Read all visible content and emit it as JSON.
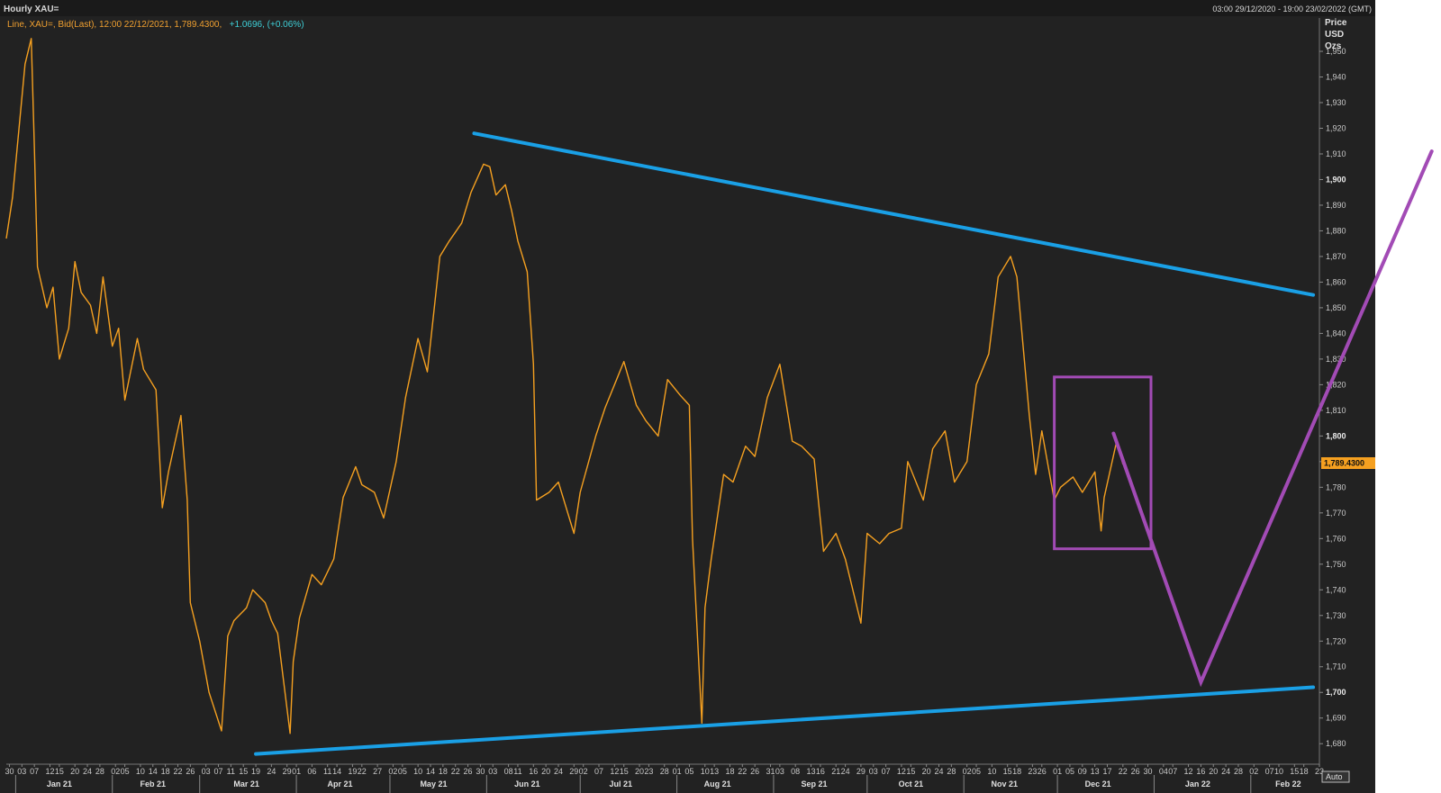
{
  "header": {
    "title": "Hourly XAU=",
    "date_range": "03:00 29/12/2020 - 19:00 23/02/2022 (GMT)",
    "legend_main": "Line, XAU=, Bid(Last), 12:00 22/12/2021, 1,789.4300,",
    "legend_change": "+1.0696, (+0.06%)"
  },
  "axis": {
    "y_title": [
      "Price",
      "USD",
      "Ozs"
    ],
    "last_value_label": "1,789.4300",
    "auto_button": "Auto"
  },
  "colors": {
    "background": "#222222",
    "price_line": "#f5a020",
    "trendline": "#1aa0e6",
    "annotation": "#a24bb5",
    "last_label_bg": "#f5a020"
  },
  "chart_data": {
    "type": "line",
    "series": [
      {
        "x": [
          "2020-12-29",
          "2020-12-31",
          "2021-01-04",
          "2021-01-06",
          "2021-01-07",
          "2021-01-08",
          "2021-01-11",
          "2021-01-13",
          "2021-01-15",
          "2021-01-18",
          "2021-01-20",
          "2021-01-22",
          "2021-01-25",
          "2021-01-27",
          "2021-01-29",
          "2021-02-01",
          "2021-02-03",
          "2021-02-05",
          "2021-02-09",
          "2021-02-11",
          "2021-02-15",
          "2021-02-17",
          "2021-02-19",
          "2021-02-23",
          "2021-02-25",
          "2021-02-26",
          "2021-03-01",
          "2021-03-04",
          "2021-03-08",
          "2021-03-10",
          "2021-03-12",
          "2021-03-16",
          "2021-03-18",
          "2021-03-22",
          "2021-03-24",
          "2021-03-26",
          "2021-03-30",
          "2021-03-31",
          "2021-04-02",
          "2021-04-06",
          "2021-04-09",
          "2021-04-13",
          "2021-04-16",
          "2021-04-20",
          "2021-04-22",
          "2021-04-26",
          "2021-04-29",
          "2021-05-03",
          "2021-05-06",
          "2021-05-10",
          "2021-05-13",
          "2021-05-17",
          "2021-05-20",
          "2021-05-24",
          "2021-05-27",
          "2021-05-31",
          "2021-06-02",
          "2021-06-04",
          "2021-06-07",
          "2021-06-09",
          "2021-06-11",
          "2021-06-14",
          "2021-06-16",
          "2021-06-17",
          "2021-06-21",
          "2021-06-24",
          "2021-06-29",
          "2021-07-01",
          "2021-07-06",
          "2021-07-09",
          "2021-07-13",
          "2021-07-15",
          "2021-07-19",
          "2021-07-22",
          "2021-07-26",
          "2021-07-29",
          "2021-08-02",
          "2021-08-05",
          "2021-08-06",
          "2021-08-09",
          "2021-08-10",
          "2021-08-12",
          "2021-08-16",
          "2021-08-19",
          "2021-08-23",
          "2021-08-26",
          "2021-08-30",
          "2021-09-03",
          "2021-09-07",
          "2021-09-10",
          "2021-09-14",
          "2021-09-17",
          "2021-09-21",
          "2021-09-24",
          "2021-09-29",
          "2021-10-01",
          "2021-10-05",
          "2021-10-08",
          "2021-10-12",
          "2021-10-14",
          "2021-10-19",
          "2021-10-22",
          "2021-10-26",
          "2021-10-29",
          "2021-11-02",
          "2021-11-05",
          "2021-11-09",
          "2021-11-12",
          "2021-11-16",
          "2021-11-18",
          "2021-11-22",
          "2021-11-24",
          "2021-11-26",
          "2021-11-30",
          "2021-12-02",
          "2021-12-06",
          "2021-12-09",
          "2021-12-13",
          "2021-12-15",
          "2021-12-16",
          "2021-12-20",
          "2021-12-22"
        ],
        "y": [
          1877,
          1893,
          1945,
          1955,
          1912,
          1866,
          1850,
          1858,
          1830,
          1842,
          1868,
          1856,
          1851,
          1840,
          1862,
          1835,
          1842,
          1814,
          1838,
          1826,
          1818,
          1772,
          1786,
          1808,
          1775,
          1735,
          1720,
          1700,
          1685,
          1722,
          1728,
          1733,
          1740,
          1735,
          1728,
          1723,
          1684,
          1712,
          1729,
          1746,
          1742,
          1752,
          1776,
          1788,
          1781,
          1778,
          1768,
          1790,
          1815,
          1838,
          1825,
          1870,
          1876,
          1883,
          1895,
          1906,
          1905,
          1894,
          1898,
          1888,
          1876,
          1864,
          1828,
          1775,
          1778,
          1782,
          1762,
          1778,
          1800,
          1811,
          1823,
          1829,
          1812,
          1806,
          1800,
          1822,
          1816,
          1812,
          1760,
          1688,
          1733,
          1752,
          1785,
          1782,
          1796,
          1792,
          1815,
          1828,
          1798,
          1796,
          1791,
          1755,
          1762,
          1752,
          1727,
          1762,
          1758,
          1762,
          1764,
          1790,
          1775,
          1795,
          1802,
          1782,
          1790,
          1820,
          1832,
          1862,
          1870,
          1862,
          1808,
          1785,
          1802,
          1775,
          1780,
          1784,
          1778,
          1786,
          1763,
          1776,
          1798,
          1789
        ]
      }
    ],
    "xlim": [
      "2020-12-29",
      "2022-02-23"
    ],
    "ylim": [
      1672,
      1963
    ],
    "y_ticks": [
      1680,
      1690,
      1700,
      1710,
      1720,
      1730,
      1740,
      1750,
      1760,
      1770,
      1780,
      1790,
      1800,
      1810,
      1820,
      1830,
      1840,
      1850,
      1860,
      1870,
      1880,
      1890,
      1900,
      1910,
      1920,
      1930,
      1940,
      1950
    ],
    "y_tick_labels": [
      "1,680",
      "1,690",
      "1,700",
      "1,710",
      "1,720",
      "1,730",
      "1,740",
      "1,750",
      "1,760",
      "1,770",
      "1,780",
      "1,790",
      "1,800",
      "1,810",
      "1,820",
      "1,830",
      "1,840",
      "1,850",
      "1,860",
      "1,870",
      "1,880",
      "1,890",
      "1,900",
      "1,910",
      "1,920",
      "1,930",
      "1,940",
      "1,950"
    ],
    "y_major_ticks": [
      1700,
      1800,
      1900
    ],
    "x_day_ticks": [
      {
        "date": "2020-12-30",
        "label": "30"
      },
      {
        "date": "2021-01-03",
        "label": "03"
      },
      {
        "date": "2021-01-07",
        "label": "07"
      },
      {
        "date": "2021-01-12",
        "label": "12"
      },
      {
        "date": "2021-01-15",
        "label": "15"
      },
      {
        "date": "2021-01-20",
        "label": "20"
      },
      {
        "date": "2021-01-24",
        "label": "24"
      },
      {
        "date": "2021-01-28",
        "label": "28"
      },
      {
        "date": "2021-02-02",
        "label": "02"
      },
      {
        "date": "2021-02-05",
        "label": "05"
      },
      {
        "date": "2021-02-10",
        "label": "10"
      },
      {
        "date": "2021-02-14",
        "label": "14"
      },
      {
        "date": "2021-02-18",
        "label": "18"
      },
      {
        "date": "2021-02-22",
        "label": "22"
      },
      {
        "date": "2021-02-26",
        "label": "26"
      },
      {
        "date": "2021-03-03",
        "label": "03"
      },
      {
        "date": "2021-03-07",
        "label": "07"
      },
      {
        "date": "2021-03-11",
        "label": "11"
      },
      {
        "date": "2021-03-15",
        "label": "15"
      },
      {
        "date": "2021-03-19",
        "label": "19"
      },
      {
        "date": "2021-03-24",
        "label": "24"
      },
      {
        "date": "2021-03-29",
        "label": "29"
      },
      {
        "date": "2021-04-01",
        "label": "01"
      },
      {
        "date": "2021-04-06",
        "label": "06"
      },
      {
        "date": "2021-04-11",
        "label": "11"
      },
      {
        "date": "2021-04-14",
        "label": "14"
      },
      {
        "date": "2021-04-19",
        "label": "19"
      },
      {
        "date": "2021-04-22",
        "label": "22"
      },
      {
        "date": "2021-04-27",
        "label": "27"
      },
      {
        "date": "2021-05-02",
        "label": "02"
      },
      {
        "date": "2021-05-05",
        "label": "05"
      },
      {
        "date": "2021-05-10",
        "label": "10"
      },
      {
        "date": "2021-05-14",
        "label": "14"
      },
      {
        "date": "2021-05-18",
        "label": "18"
      },
      {
        "date": "2021-05-22",
        "label": "22"
      },
      {
        "date": "2021-05-26",
        "label": "26"
      },
      {
        "date": "2021-05-30",
        "label": "30"
      },
      {
        "date": "2021-06-03",
        "label": "03"
      },
      {
        "date": "2021-06-08",
        "label": "08"
      },
      {
        "date": "2021-06-11",
        "label": "11"
      },
      {
        "date": "2021-06-16",
        "label": "16"
      },
      {
        "date": "2021-06-20",
        "label": "20"
      },
      {
        "date": "2021-06-24",
        "label": "24"
      },
      {
        "date": "2021-06-29",
        "label": "29"
      },
      {
        "date": "2021-07-02",
        "label": "02"
      },
      {
        "date": "2021-07-07",
        "label": "07"
      },
      {
        "date": "2021-07-12",
        "label": "12"
      },
      {
        "date": "2021-07-15",
        "label": "15"
      },
      {
        "date": "2021-07-20",
        "label": "20"
      },
      {
        "date": "2021-07-23",
        "label": "23"
      },
      {
        "date": "2021-07-28",
        "label": "28"
      },
      {
        "date": "2021-08-01",
        "label": "01"
      },
      {
        "date": "2021-08-05",
        "label": "05"
      },
      {
        "date": "2021-08-10",
        "label": "10"
      },
      {
        "date": "2021-08-13",
        "label": "13"
      },
      {
        "date": "2021-08-18",
        "label": "18"
      },
      {
        "date": "2021-08-22",
        "label": "22"
      },
      {
        "date": "2021-08-26",
        "label": "26"
      },
      {
        "date": "2021-08-31",
        "label": "31"
      },
      {
        "date": "2021-09-03",
        "label": "03"
      },
      {
        "date": "2021-09-08",
        "label": "08"
      },
      {
        "date": "2021-09-13",
        "label": "13"
      },
      {
        "date": "2021-09-16",
        "label": "16"
      },
      {
        "date": "2021-09-21",
        "label": "21"
      },
      {
        "date": "2021-09-24",
        "label": "24"
      },
      {
        "date": "2021-09-29",
        "label": "29"
      },
      {
        "date": "2021-10-03",
        "label": "03"
      },
      {
        "date": "2021-10-07",
        "label": "07"
      },
      {
        "date": "2021-10-12",
        "label": "12"
      },
      {
        "date": "2021-10-15",
        "label": "15"
      },
      {
        "date": "2021-10-20",
        "label": "20"
      },
      {
        "date": "2021-10-24",
        "label": "24"
      },
      {
        "date": "2021-10-28",
        "label": "28"
      },
      {
        "date": "2021-11-02",
        "label": "02"
      },
      {
        "date": "2021-11-05",
        "label": "05"
      },
      {
        "date": "2021-11-10",
        "label": "10"
      },
      {
        "date": "2021-11-15",
        "label": "15"
      },
      {
        "date": "2021-11-18",
        "label": "18"
      },
      {
        "date": "2021-11-23",
        "label": "23"
      },
      {
        "date": "2021-11-26",
        "label": "26"
      },
      {
        "date": "2021-12-01",
        "label": "01"
      },
      {
        "date": "2021-12-05",
        "label": "05"
      },
      {
        "date": "2021-12-09",
        "label": "09"
      },
      {
        "date": "2021-12-13",
        "label": "13"
      },
      {
        "date": "2021-12-17",
        "label": "17"
      },
      {
        "date": "2021-12-22",
        "label": "22"
      },
      {
        "date": "2021-12-26",
        "label": "26"
      },
      {
        "date": "2021-12-30",
        "label": "30"
      },
      {
        "date": "2022-01-04",
        "label": "04"
      },
      {
        "date": "2022-01-07",
        "label": "07"
      },
      {
        "date": "2022-01-12",
        "label": "12"
      },
      {
        "date": "2022-01-16",
        "label": "16"
      },
      {
        "date": "2022-01-20",
        "label": "20"
      },
      {
        "date": "2022-01-24",
        "label": "24"
      },
      {
        "date": "2022-01-28",
        "label": "28"
      },
      {
        "date": "2022-02-02",
        "label": "02"
      },
      {
        "date": "2022-02-07",
        "label": "07"
      },
      {
        "date": "2022-02-10",
        "label": "10"
      },
      {
        "date": "2022-02-15",
        "label": "15"
      },
      {
        "date": "2022-02-18",
        "label": "18"
      },
      {
        "date": "2022-02-23",
        "label": "23"
      }
    ],
    "x_month_labels": [
      {
        "date": "2021-01-15",
        "label": "Jan 21"
      },
      {
        "date": "2021-02-14",
        "label": "Feb 21"
      },
      {
        "date": "2021-03-16",
        "label": "Mar 21"
      },
      {
        "date": "2021-04-15",
        "label": "Apr 21"
      },
      {
        "date": "2021-05-15",
        "label": "May 21"
      },
      {
        "date": "2021-06-14",
        "label": "Jun 21"
      },
      {
        "date": "2021-07-14",
        "label": "Jul 21"
      },
      {
        "date": "2021-08-14",
        "label": "Aug 21"
      },
      {
        "date": "2021-09-14",
        "label": "Sep 21"
      },
      {
        "date": "2021-10-15",
        "label": "Oct 21"
      },
      {
        "date": "2021-11-14",
        "label": "Nov 21"
      },
      {
        "date": "2021-12-14",
        "label": "Dec 21"
      },
      {
        "date": "2022-01-15",
        "label": "Jan 22"
      },
      {
        "date": "2022-02-13",
        "label": "Feb 22"
      }
    ],
    "month_boundaries": [
      "2021-01-01",
      "2021-02-01",
      "2021-03-01",
      "2021-04-01",
      "2021-05-01",
      "2021-06-01",
      "2021-07-01",
      "2021-08-01",
      "2021-09-01",
      "2021-10-01",
      "2021-11-01",
      "2021-12-01",
      "2022-01-01",
      "2022-02-01"
    ],
    "last_value": 1789.43,
    "annotations": {
      "trendlines": [
        {
          "from": {
            "x": "2021-05-28",
            "y": 1918
          },
          "to": {
            "x": "2022-02-21",
            "y": 1855
          }
        },
        {
          "from": {
            "x": "2021-03-19",
            "y": 1676
          },
          "to": {
            "x": "2022-02-21",
            "y": 1702
          }
        }
      ],
      "box": {
        "x0": "2021-11-30",
        "x1": "2021-12-31",
        "y0": 1756,
        "y1": 1823
      },
      "forecast_path": [
        {
          "x": "2021-12-19",
          "y": 1801
        },
        {
          "x": "2022-01-16",
          "y": 1704
        },
        {
          "x": "2022-03-31",
          "y": 1911
        }
      ]
    },
    "grid": false,
    "legend": "top-left"
  }
}
